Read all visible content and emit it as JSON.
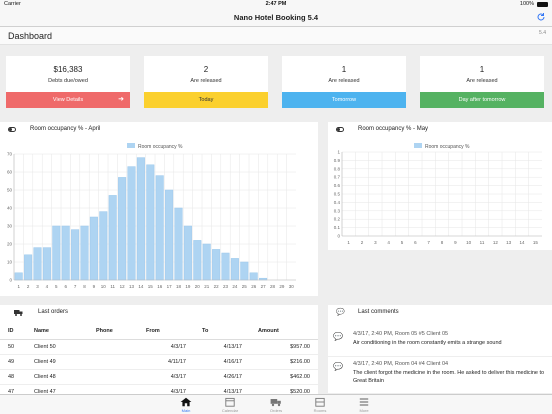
{
  "status": {
    "carrier": "Carrier",
    "time": "2:47 PM",
    "battery": "100%"
  },
  "app": {
    "title": "Nano Hotel Booking 5.4"
  },
  "header": {
    "title": "Dashboard",
    "version": "5.4"
  },
  "cards": [
    {
      "value": "$16,383",
      "label": "Debts due/owed",
      "button": "View Details",
      "color": "#ef6a6a",
      "text_color": "#ffffff"
    },
    {
      "value": "2",
      "label": "Are released",
      "button": "Today",
      "color": "#fbd02e",
      "text_color": "#333333"
    },
    {
      "value": "1",
      "label": "Are released",
      "button": "Tomorrow",
      "color": "#4db3ef",
      "text_color": "#ffffff"
    },
    {
      "value": "1",
      "label": "Are released",
      "button": "Day after tomorrow",
      "color": "#55b262",
      "text_color": "#ffffff"
    }
  ],
  "panels": {
    "april_title": "Room occupancy % - April",
    "may_title": "Room occupancy % - May",
    "orders_title": "Last orders",
    "comments_title": "Last comments"
  },
  "chart_data": [
    {
      "type": "bar",
      "title": "Room occupancy % - April",
      "legend": "Room occupancy %",
      "categories": [
        "1",
        "2",
        "3",
        "4",
        "5",
        "6",
        "7",
        "8",
        "9",
        "10",
        "11",
        "12",
        "13",
        "14",
        "15",
        "16",
        "17",
        "18",
        "19",
        "20",
        "21",
        "22",
        "23",
        "24",
        "25",
        "26",
        "27",
        "28",
        "29",
        "30"
      ],
      "values": [
        4,
        14,
        18,
        18,
        30,
        30,
        28,
        30,
        35,
        38,
        47,
        57,
        63,
        68,
        64,
        58,
        50,
        40,
        30,
        22,
        20,
        17,
        15,
        12,
        10,
        4,
        1,
        0,
        0,
        0
      ],
      "ylim": [
        0,
        70
      ],
      "yticks": [
        0,
        10,
        20,
        30,
        40,
        50,
        60,
        70
      ],
      "color": "#aed4f2",
      "grid": true
    },
    {
      "type": "bar",
      "title": "Room occupancy % - May",
      "legend": "Room occupancy %",
      "categories": [
        "1",
        "2",
        "3",
        "4",
        "5",
        "6",
        "7",
        "8",
        "9",
        "10",
        "11",
        "12",
        "13",
        "14",
        "15"
      ],
      "values": [
        0,
        0,
        0,
        0,
        0,
        0,
        0,
        0,
        0,
        0,
        0,
        0,
        0,
        0,
        0
      ],
      "ylim": [
        0,
        1
      ],
      "yticks": [
        "0",
        "0.1",
        "0.2",
        "0.3",
        "0.4",
        "0.5",
        "0.6",
        "0.7",
        "0.8",
        "0.9",
        "1"
      ],
      "color": "#aed4f2",
      "grid": true
    }
  ],
  "orders": {
    "columns": [
      "ID",
      "Name",
      "Phone",
      "From",
      "To",
      "Amount"
    ],
    "rows": [
      [
        "50",
        "Client 50",
        "",
        "4/3/17",
        "4/13/17",
        "$957.00"
      ],
      [
        "49",
        "Client 49",
        "",
        "4/11/17",
        "4/16/17",
        "$216.00"
      ],
      [
        "48",
        "Client 48",
        "",
        "4/3/17",
        "4/26/17",
        "$462.00"
      ],
      [
        "47",
        "Client 47",
        "",
        "4/3/17",
        "4/13/17",
        "$520.00"
      ]
    ]
  },
  "comments": [
    {
      "meta": "4/3/17, 2:40 PM, Room 05 #5 Client 05",
      "text": "Air conditioning in the room constantly emits a strange sound"
    },
    {
      "meta": "4/3/17, 2:40 PM, Room 04 #4 Client 04",
      "text": "The client forgot the medicine in the room. He asked to deliver this medicine to Great Britain"
    }
  ],
  "tabs": [
    {
      "label": "Main",
      "icon": "home-icon",
      "active": true
    },
    {
      "label": "Calendar",
      "icon": "calendar-icon",
      "active": false
    },
    {
      "label": "Orders",
      "icon": "truck-icon",
      "active": false
    },
    {
      "label": "Rooms",
      "icon": "rooms-icon",
      "active": false
    },
    {
      "label": "More",
      "icon": "menu-icon",
      "active": false
    }
  ]
}
